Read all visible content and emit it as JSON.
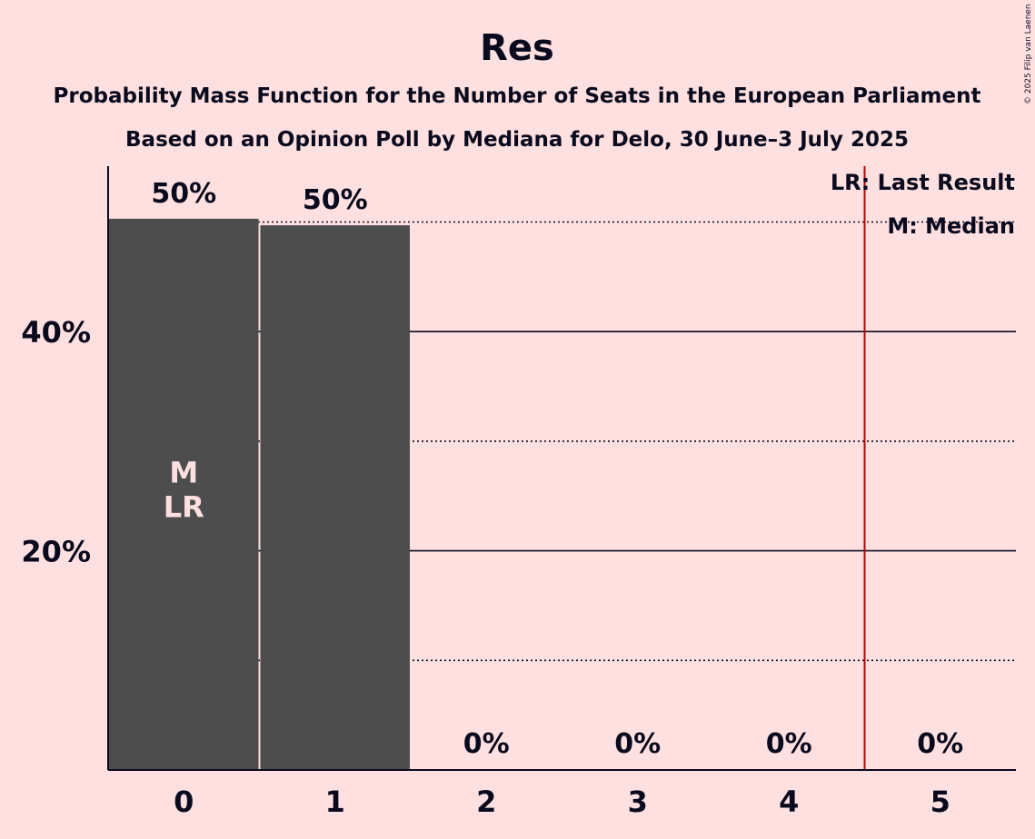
{
  "chart_data": {
    "type": "bar",
    "title": "Res",
    "subtitle_1": "Probability Mass Function for the Number of Seats in the European Parliament",
    "subtitle_2": "Based on an Opinion Poll by Mediana for Delo, 30 June–3 July 2025",
    "copyright": "© 2025 Filip van Laenen",
    "categories": [
      "0",
      "1",
      "2",
      "3",
      "4",
      "5"
    ],
    "values": [
      50.3,
      49.7,
      0,
      0,
      0,
      0
    ],
    "value_labels": [
      "50%",
      "50%",
      "0%",
      "0%",
      "0%",
      "0%"
    ],
    "ylim": [
      0,
      55
    ],
    "y_ticks": [
      {
        "value": 20,
        "label": "20%"
      },
      {
        "value": 40,
        "label": "40%"
      }
    ],
    "minor_gridlines": [
      10,
      30,
      50
    ],
    "bar_marker_labels": {
      "index": 0,
      "lines": [
        "M",
        "LR"
      ]
    },
    "last_result_line_after": 4.5,
    "legend": [
      "LR: Last Result",
      "M: Median"
    ],
    "legend_position": "top-right",
    "colors": {
      "background": "#FFE0E0",
      "bar": "#4D4D4D",
      "text": "#0A0A1E",
      "last_result_line": "#C00000",
      "marker_text": "#FFE0E0"
    }
  }
}
